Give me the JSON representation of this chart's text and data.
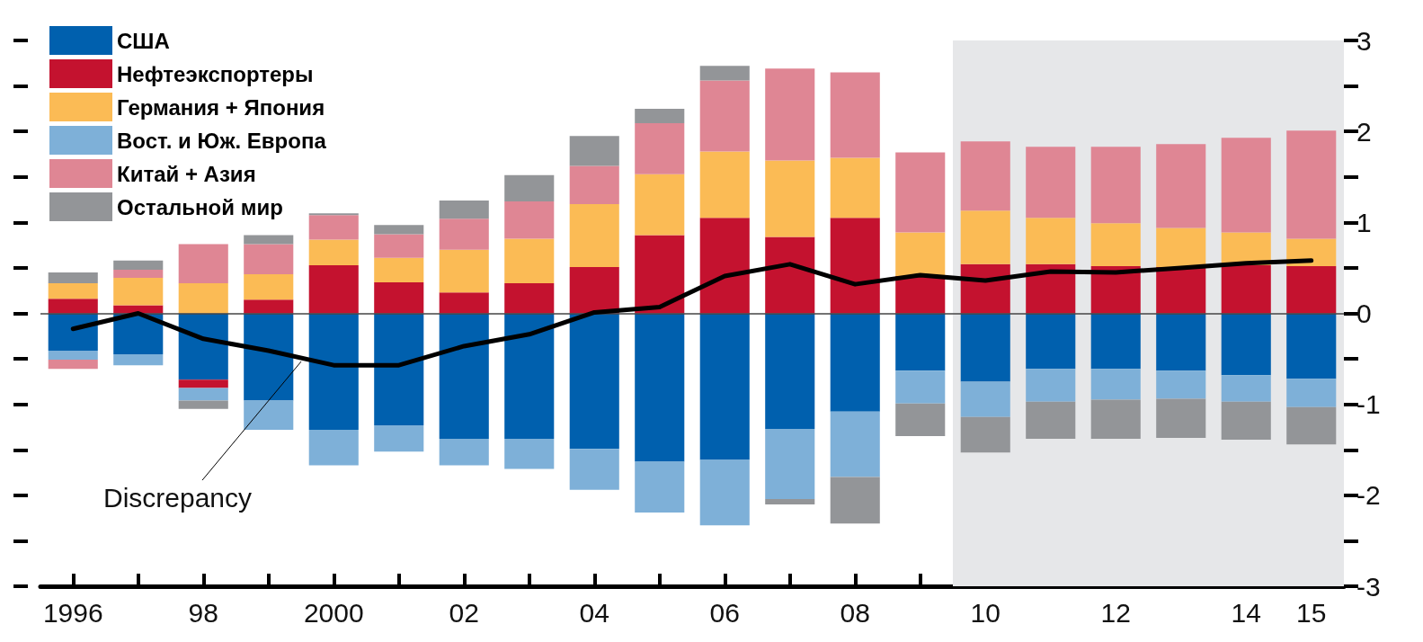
{
  "chart_data": {
    "type": "bar",
    "stacked": true,
    "categories": [
      "1996",
      null,
      "98",
      null,
      "2000",
      null,
      "02",
      null,
      "04",
      null,
      "06",
      null,
      "08",
      null,
      "10",
      null,
      "12",
      null,
      "14",
      "15"
    ],
    "series": [
      {
        "name": "США",
        "color": "#0060ae",
        "values": [
          -0.41,
          -0.45,
          -0.73,
          -0.96,
          -1.28,
          -1.23,
          -1.38,
          -1.38,
          -1.49,
          -1.63,
          -1.61,
          -1.27,
          -1.08,
          -0.63,
          -0.75,
          -0.61,
          -0.61,
          -0.63,
          -0.68,
          -0.72
        ]
      },
      {
        "name": "Нефтеэкспортеры",
        "color": "#c4122f",
        "values": [
          0.16,
          0.09,
          -0.09,
          0.15,
          0.53,
          0.34,
          0.23,
          0.33,
          0.51,
          0.86,
          1.05,
          0.84,
          1.05,
          0.41,
          0.54,
          0.54,
          0.52,
          0.51,
          0.53,
          0.52
        ]
      },
      {
        "name": "Германия + Япония",
        "color": "#fbbb55",
        "values": [
          0.17,
          0.3,
          0.33,
          0.28,
          0.28,
          0.27,
          0.47,
          0.49,
          0.69,
          0.67,
          0.73,
          0.84,
          0.66,
          0.48,
          0.59,
          0.51,
          0.47,
          0.43,
          0.36,
          0.3
        ]
      },
      {
        "name": "Вост. и Юж. Европа",
        "color": "#7eb0d8",
        "values": [
          -0.1,
          -0.12,
          -0.14,
          -0.32,
          -0.39,
          -0.29,
          -0.29,
          -0.33,
          -0.45,
          -0.56,
          -0.72,
          -0.77,
          -0.72,
          -0.36,
          -0.39,
          -0.36,
          -0.34,
          -0.31,
          -0.29,
          -0.31
        ]
      },
      {
        "name": "Китай + Азия",
        "color": "#df8694",
        "values": [
          -0.1,
          0.09,
          0.43,
          0.33,
          0.27,
          0.26,
          0.34,
          0.41,
          0.42,
          0.56,
          0.78,
          1.01,
          0.94,
          0.88,
          0.76,
          0.78,
          0.84,
          0.92,
          1.04,
          1.19
        ]
      },
      {
        "name": "Остальной мир",
        "color": "#939598",
        "values": [
          0.12,
          0.1,
          -0.09,
          0.1,
          0.02,
          0.1,
          0.2,
          0.29,
          0.33,
          0.16,
          0.16,
          -0.06,
          -0.51,
          -0.36,
          -0.39,
          -0.41,
          -0.43,
          -0.43,
          -0.42,
          -0.41
        ]
      },
      {
        "name": "Discrepancy",
        "type": "line",
        "color": "#000000",
        "values": [
          -0.17,
          0.0,
          -0.28,
          -0.41,
          -0.57,
          -0.57,
          -0.36,
          -0.23,
          0.01,
          0.07,
          0.41,
          0.54,
          0.32,
          0.42,
          0.36,
          0.46,
          0.45,
          0.5,
          0.55,
          0.58
        ]
      }
    ],
    "ylim": [
      -3,
      3
    ],
    "yticks": [
      -3,
      {
        "value": -2.5,
        "label": null
      },
      -2,
      {
        "value": -1.5,
        "label": null
      },
      -1,
      {
        "value": -0.5,
        "label": null
      },
      0,
      {
        "value": 0.5,
        "label": null
      },
      1,
      {
        "value": 1.5,
        "label": null
      },
      2,
      {
        "value": 2.5,
        "label": null
      },
      3
    ],
    "ref_lines": [
      {
        "axis": "y",
        "value": 0,
        "color": "#444444"
      }
    ],
    "bands": [
      {
        "axis": "x",
        "from": "10",
        "to": "15",
        "color": "#e6e7e9"
      }
    ],
    "legend": "top left",
    "grid": false,
    "marker": "none",
    "line_style": "solid"
  }
}
